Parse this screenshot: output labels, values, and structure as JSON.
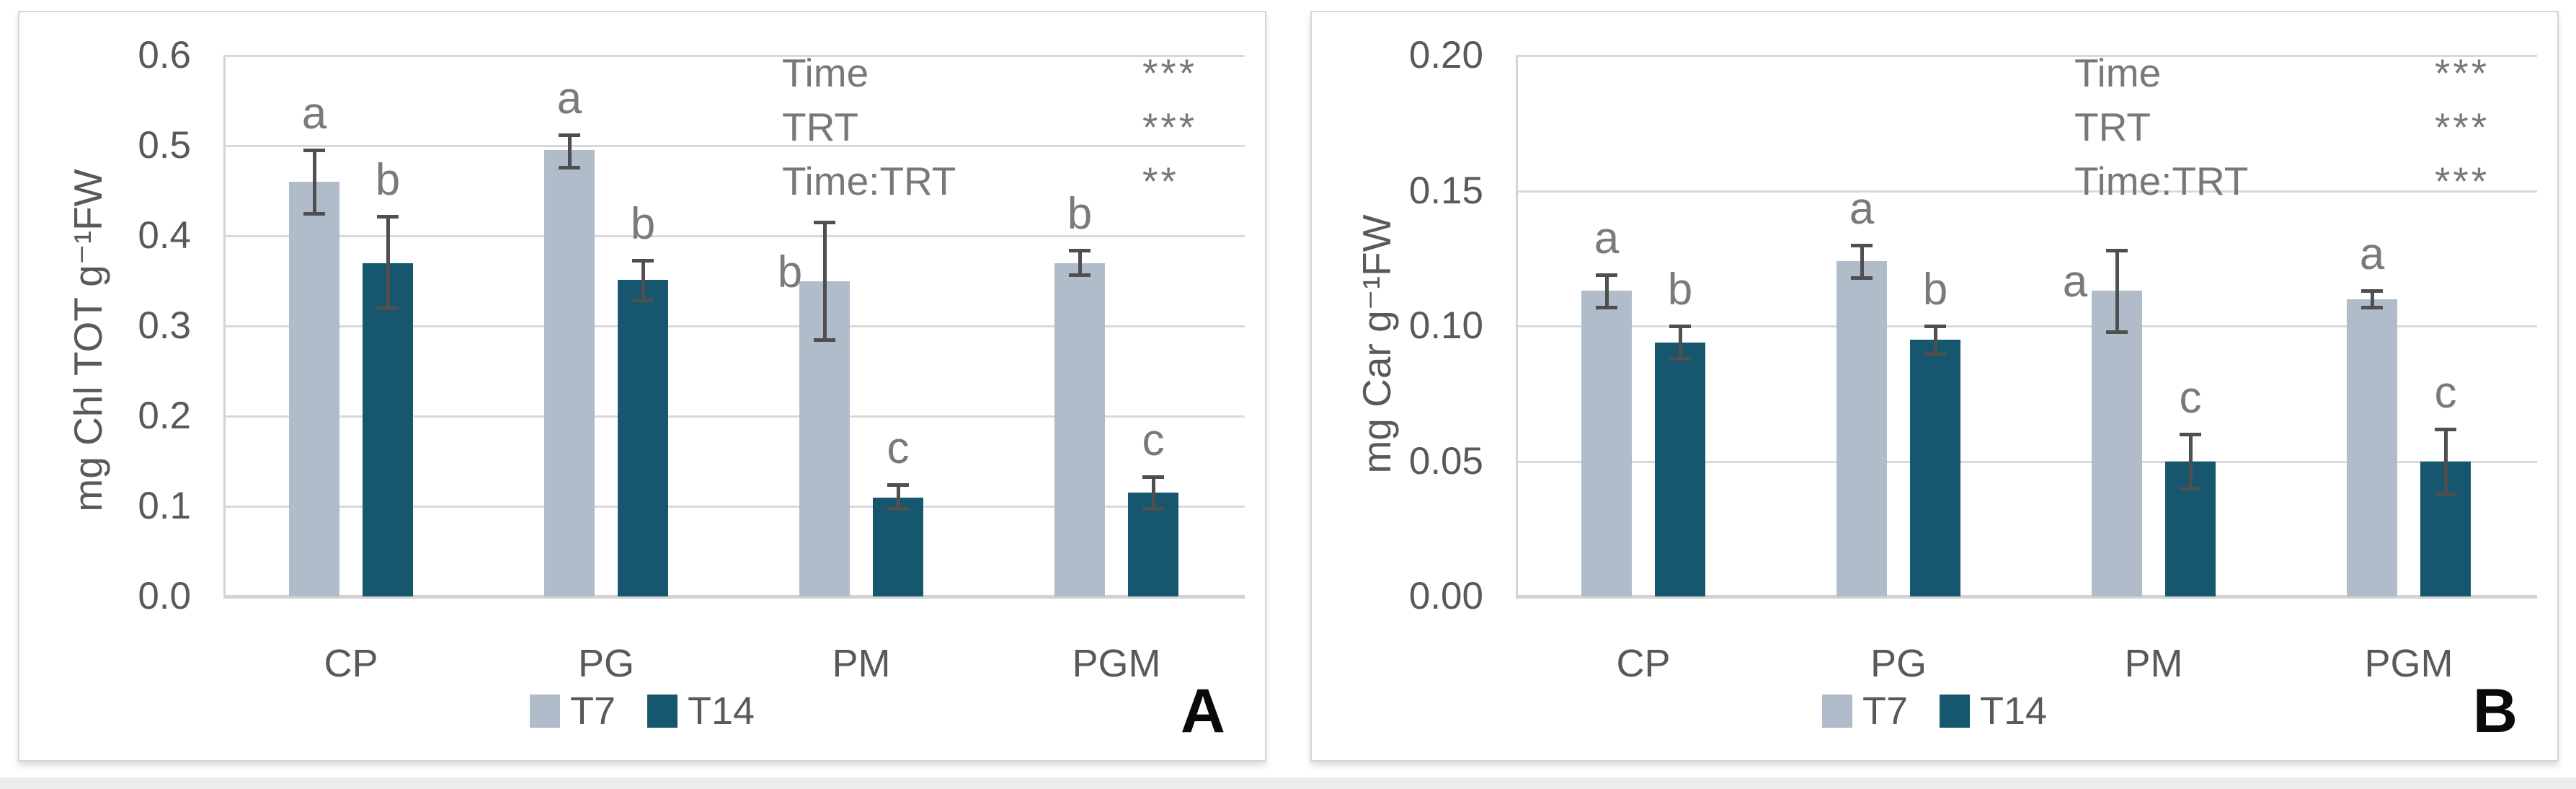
{
  "figure": {
    "bar_color_t7": "#b0bcc9",
    "bar_color_t14": "#16566f",
    "gridline_color": "#d9d9d9",
    "error_bar_color": "#4f4f4f",
    "text_color": "#595959"
  },
  "chart_data": [
    {
      "panel": "A",
      "type": "bar",
      "panel_label": "A",
      "ylabel": "mg Chl TOT g⁻¹FW",
      "xlabel": "",
      "ylim": [
        0,
        0.6
      ],
      "grid": true,
      "legend_position": "bottom",
      "y_ticks": {
        "values": [
          0.6,
          0.5,
          0.4,
          0.3,
          0.2,
          0.1,
          0.0
        ],
        "labels": [
          "0.6",
          "0.5",
          "0.4",
          "0.3",
          "0.2",
          "0.1",
          "0.0"
        ]
      },
      "categories": [
        "CP",
        "PG",
        "PM",
        "PGM"
      ],
      "series": [
        {
          "name": "T7",
          "color": "#b0bcc9",
          "values": [
            0.46,
            0.495,
            0.35,
            0.37
          ],
          "err_low": [
            0.425,
            0.476,
            0.285,
            0.357
          ],
          "err_high": [
            0.495,
            0.512,
            0.415,
            0.384
          ],
          "letters": [
            "a",
            "a",
            "b",
            "b"
          ],
          "letter_dx": [
            0,
            0,
            -48,
            0
          ]
        },
        {
          "name": "T14",
          "color": "#16566f",
          "values": [
            0.37,
            0.351,
            0.11,
            0.115
          ],
          "err_low": [
            0.32,
            0.329,
            0.098,
            0.098
          ],
          "err_high": [
            0.422,
            0.373,
            0.124,
            0.133
          ],
          "letters": [
            "b",
            "b",
            "c",
            "c"
          ],
          "letter_dx": [
            0,
            0,
            0,
            0
          ]
        }
      ],
      "anova": [
        {
          "term": "Time",
          "sig": "***"
        },
        {
          "term": "TRT",
          "sig": "***"
        },
        {
          "term": "Time:TRT",
          "sig": "**"
        }
      ],
      "legend": [
        "T7",
        "T14"
      ]
    },
    {
      "panel": "B",
      "type": "bar",
      "panel_label": "B",
      "ylabel": "mg Car g⁻¹FW",
      "xlabel": "",
      "ylim": [
        0,
        0.2
      ],
      "grid": true,
      "legend_position": "bottom",
      "y_ticks": {
        "values": [
          0.2,
          0.15,
          0.1,
          0.05,
          0.0
        ],
        "labels": [
          "0.20",
          "0.15",
          "0.10",
          "0.05",
          "0.00"
        ]
      },
      "categories": [
        "CP",
        "PG",
        "PM",
        "PGM"
      ],
      "series": [
        {
          "name": "T7",
          "color": "#b0bcc9",
          "values": [
            0.113,
            0.124,
            0.113,
            0.11
          ],
          "err_low": [
            0.107,
            0.118,
            0.098,
            0.107
          ],
          "err_high": [
            0.119,
            0.13,
            0.128,
            0.113
          ],
          "letters": [
            "a",
            "a",
            "a",
            "a"
          ],
          "letter_dx": [
            0,
            0,
            -58,
            0
          ]
        },
        {
          "name": "T14",
          "color": "#16566f",
          "values": [
            0.094,
            0.095,
            0.05,
            0.05
          ],
          "err_low": [
            0.088,
            0.09,
            0.04,
            0.038
          ],
          "err_high": [
            0.1,
            0.1,
            0.06,
            0.062
          ],
          "letters": [
            "b",
            "b",
            "c",
            "c"
          ],
          "letter_dx": [
            0,
            0,
            0,
            0
          ]
        }
      ],
      "anova": [
        {
          "term": "Time",
          "sig": "***"
        },
        {
          "term": "TRT",
          "sig": "***"
        },
        {
          "term": "Time:TRT",
          "sig": "***"
        }
      ],
      "legend": [
        "T7",
        "T14"
      ]
    }
  ]
}
